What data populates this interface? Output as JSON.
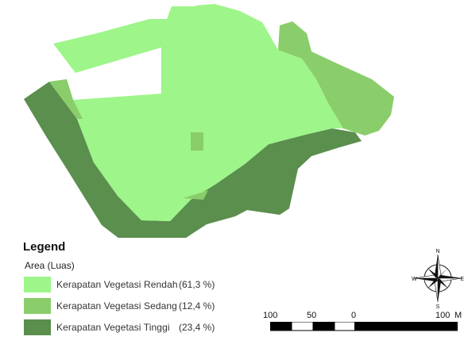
{
  "legend": {
    "title": "Legend",
    "subtitle": "Area (Luas)",
    "items": [
      {
        "label": "Kerapatan Vegetasi Rendah",
        "percent": "(61,3 %)",
        "color": "#9ef58a"
      },
      {
        "label": "Kerapatan Vegetasi Sedang",
        "percent": "(12,4 %)",
        "color": "#8acd6b"
      },
      {
        "label": "Kerapatan Vegetasi Tinggi",
        "percent": "(23,4 %)",
        "color": "#5a8f4d"
      }
    ]
  },
  "scale": {
    "labels": [
      "100",
      "50",
      "0",
      "100"
    ],
    "unit": "M"
  },
  "compass": {
    "n": "N",
    "s": "S",
    "e": "E",
    "w": "W"
  }
}
